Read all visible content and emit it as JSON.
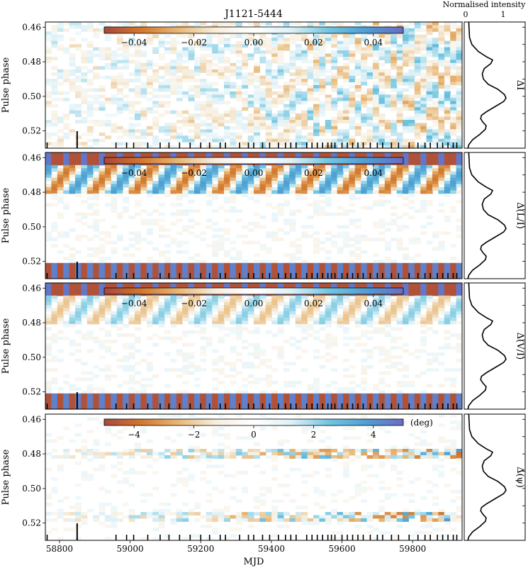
{
  "title": "J1121-5444",
  "profile_header": "Normalised intensity",
  "profile_ticks": [
    "0",
    "1"
  ],
  "xlabel": "MJD",
  "ylabel": "Pulse phase",
  "x_ticks": [
    "58800",
    "59000",
    "59200",
    "59400",
    "59600",
    "59800"
  ],
  "y_ticks": [
    "0.46",
    "0.48",
    "0.50",
    "0.52"
  ],
  "colormap": [
    "#a8483c",
    "#d2782e",
    "#e8b878",
    "#f6efe0",
    "#ffffff",
    "#dff1f6",
    "#72c6e0",
    "#4f9fd4",
    "#6b6cc4"
  ],
  "chart_data": [
    {
      "type": "heatmap",
      "panel_label": "ΔI",
      "colorbar_ticks": [
        "−0.04",
        "−0.02",
        "0.00",
        "0.02",
        "0.04"
      ],
      "colorbar_range": [
        -0.05,
        0.05
      ],
      "colorbar_unit": "",
      "xlim": [
        58760,
        59940
      ],
      "ylim": [
        0.457,
        0.53
      ]
    },
    {
      "type": "heatmap",
      "panel_label": "Δ(L/I)",
      "colorbar_ticks": [
        "−0.04",
        "−0.02",
        "0.00",
        "0.02",
        "0.04"
      ],
      "colorbar_range": [
        -0.05,
        0.05
      ],
      "colorbar_unit": "",
      "xlim": [
        58760,
        59940
      ],
      "ylim": [
        0.457,
        0.53
      ]
    },
    {
      "type": "heatmap",
      "panel_label": "Δ(V/I)",
      "colorbar_ticks": [
        "−0.04",
        "−0.02",
        "0.00",
        "0.02",
        "0.04"
      ],
      "colorbar_range": [
        -0.05,
        0.05
      ],
      "colorbar_unit": "",
      "xlim": [
        58760,
        59940
      ],
      "ylim": [
        0.457,
        0.53
      ]
    },
    {
      "type": "heatmap",
      "panel_label": "Δ(ψ)",
      "colorbar_ticks": [
        "−4",
        "−2",
        "0",
        "2",
        "4"
      ],
      "colorbar_range": [
        -5,
        5
      ],
      "colorbar_unit": "(deg)",
      "xlim": [
        58760,
        59940
      ],
      "ylim": [
        0.457,
        0.53
      ]
    }
  ],
  "observation_epochs_mjd": [
    58765,
    58850,
    58960,
    58990,
    59010,
    59050,
    59085,
    59110,
    59140,
    59170,
    59200,
    59225,
    59255,
    59270,
    59310,
    59335,
    59350,
    59375,
    59395,
    59420,
    59440,
    59455,
    59470,
    59500,
    59515,
    59530,
    59545,
    59560,
    59570,
    59580,
    59600,
    59615,
    59630,
    59645,
    59660,
    59680,
    59700,
    59715,
    59740,
    59760,
    59790,
    59815,
    59835,
    59850,
    59870,
    59885,
    59900,
    59915,
    59925
  ],
  "profile_curve": [
    [
      0.457,
      0.06
    ],
    [
      0.466,
      0.08
    ],
    [
      0.47,
      0.14
    ],
    [
      0.474,
      0.3
    ],
    [
      0.477,
      0.5
    ],
    [
      0.479,
      0.66
    ],
    [
      0.481,
      0.62
    ],
    [
      0.484,
      0.45
    ],
    [
      0.487,
      0.4
    ],
    [
      0.49,
      0.43
    ],
    [
      0.493,
      0.55
    ],
    [
      0.496,
      0.8
    ],
    [
      0.499,
      0.96
    ],
    [
      0.501,
      1.0
    ],
    [
      0.503,
      0.94
    ],
    [
      0.506,
      0.72
    ],
    [
      0.509,
      0.5
    ],
    [
      0.511,
      0.38
    ],
    [
      0.513,
      0.36
    ],
    [
      0.515,
      0.42
    ],
    [
      0.517,
      0.5
    ],
    [
      0.519,
      0.48
    ],
    [
      0.522,
      0.34
    ],
    [
      0.525,
      0.16
    ],
    [
      0.528,
      0.06
    ],
    [
      0.53,
      0.04
    ]
  ]
}
